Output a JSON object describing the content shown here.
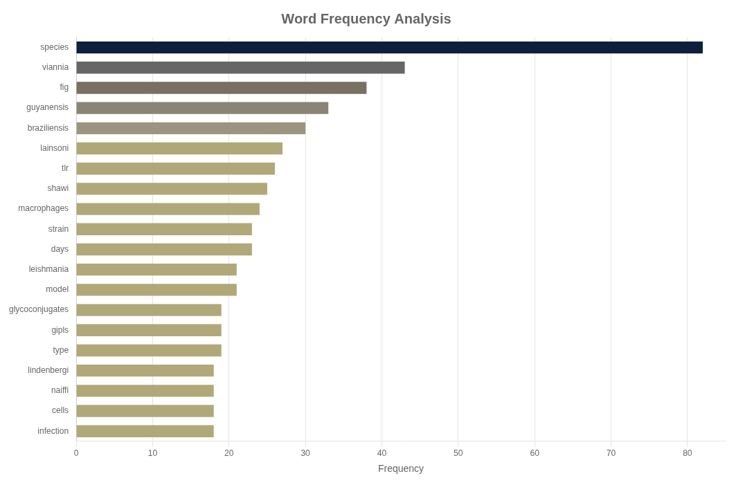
{
  "chart_data": {
    "type": "bar",
    "orientation": "horizontal",
    "title": "Word Frequency Analysis",
    "categories": [
      "species",
      "viannia",
      "fig",
      "guyanensis",
      "braziliensis",
      "lainsoni",
      "tlr",
      "shawi",
      "macrophages",
      "strain",
      "days",
      "leishmania",
      "model",
      "glycoconjugates",
      "gipls",
      "type",
      "lindenbergi",
      "naiffi",
      "cells",
      "infection"
    ],
    "values": [
      82,
      43,
      38,
      33,
      30,
      27,
      26,
      25,
      24,
      23,
      23,
      21,
      21,
      19,
      19,
      19,
      18,
      18,
      18,
      18
    ],
    "colors": [
      "#0d1f3c",
      "#666666",
      "#787060",
      "#8a8476",
      "#9b9580",
      "#b0a878",
      "#b0a878",
      "#b0a878",
      "#b0a878",
      "#b0a878",
      "#b0a878",
      "#b0a878",
      "#b0a878",
      "#b0a878",
      "#b0a878",
      "#b0a878",
      "#b0a878",
      "#b0a878",
      "#b0a878",
      "#b0a878"
    ],
    "xlabel": "Frequency",
    "xlim": [
      0,
      85
    ],
    "xticks": [
      0,
      10,
      20,
      30,
      40,
      50,
      60,
      70,
      80
    ],
    "grid": true
  }
}
